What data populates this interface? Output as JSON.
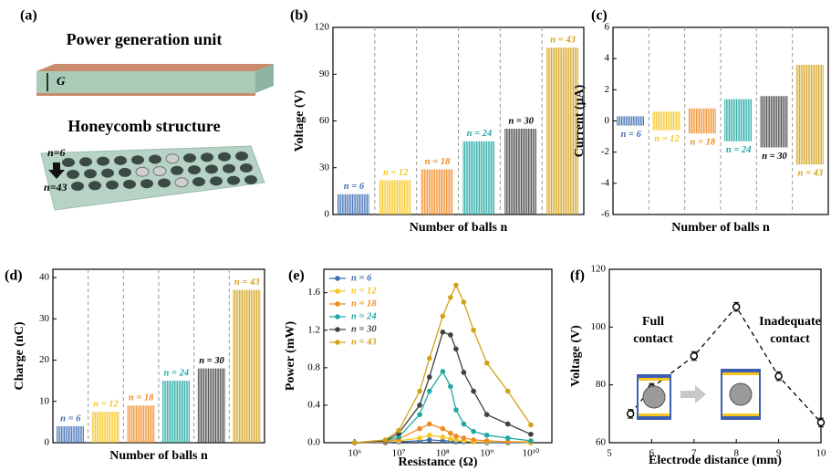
{
  "panel_a": {
    "label": "(a)",
    "title": "Power generation unit",
    "gap_label": "G",
    "subtitle": "Honeycomb structure",
    "top_label": "n=6",
    "bottom_label": "n=43"
  },
  "chart_data": [
    {
      "type": "spikes",
      "panel_label": "(b)",
      "y_label": "Voltage (V)",
      "x_label": "Number of balls n",
      "categories": [
        "n = 6",
        "n = 12",
        "n = 18",
        "n = 24",
        "n = 30",
        "n = 43"
      ],
      "values": [
        13,
        22,
        29,
        47,
        55,
        107
      ],
      "colors": [
        "#3b6db4",
        "#f6c520",
        "#f08a24",
        "#1fa8a2",
        "#404040",
        "#d4a219"
      ],
      "ylim": [
        0,
        120
      ],
      "yticks": [
        0,
        30,
        60,
        90,
        120
      ]
    },
    {
      "type": "signal",
      "panel_label": "(c)",
      "y_label": "Current (μA)",
      "x_label": "Number of balls n",
      "categories": [
        "n = 6",
        "n = 12",
        "n = 18",
        "n = 24",
        "n = 30",
        "n = 43"
      ],
      "values": [
        0.3,
        0.6,
        0.8,
        1.4,
        1.6,
        3.6
      ],
      "min_values": [
        -0.3,
        -0.6,
        -0.8,
        -1.3,
        -1.7,
        -2.8
      ],
      "colors": [
        "#3b6db4",
        "#f6c520",
        "#f08a24",
        "#1fa8a2",
        "#404040",
        "#d4a219"
      ],
      "ylim": [
        -6,
        6
      ],
      "yticks": [
        -6,
        -4,
        -2,
        0,
        2,
        4,
        6
      ]
    },
    {
      "type": "spikes",
      "panel_label": "(d)",
      "y_label": "Charge (nC)",
      "x_label": "Number of balls n",
      "categories": [
        "n = 6",
        "n = 12",
        "n = 18",
        "n = 24",
        "n = 30",
        "n = 43"
      ],
      "values": [
        4,
        7.5,
        9,
        15,
        18,
        37
      ],
      "colors": [
        "#3b6db4",
        "#f6c520",
        "#f08a24",
        "#1fa8a2",
        "#404040",
        "#d4a219"
      ],
      "ylim": [
        0,
        42
      ],
      "yticks": [
        0,
        10,
        20,
        30,
        40
      ]
    },
    {
      "type": "line",
      "panel_label": "(e)",
      "y_label": "Power (mW)",
      "x_label": "Resistance (Ω)",
      "x": [
        1000000,
        5000000,
        10000000,
        30000000,
        50000000,
        100000000,
        150000000,
        200000000,
        300000000,
        500000000,
        1000000000,
        3000000000,
        10000000000
      ],
      "log_x": true,
      "legend": "upper left",
      "series": [
        {
          "name": "n = 6",
          "color": "#3b6db4",
          "values": [
            0,
            0,
            0.01,
            0.02,
            0.03,
            0.02,
            0.02,
            0.01,
            0.01,
            0.01,
            0,
            0,
            0
          ]
        },
        {
          "name": "n = 12",
          "color": "#f6c520",
          "values": [
            0,
            0.01,
            0.02,
            0.05,
            0.08,
            0.06,
            0.04,
            0.03,
            0.02,
            0.01,
            0.01,
            0.01,
            0
          ]
        },
        {
          "name": "n = 18",
          "color": "#f08a24",
          "values": [
            0,
            0.01,
            0.04,
            0.15,
            0.2,
            0.15,
            0.1,
            0.07,
            0.05,
            0.03,
            0.02,
            0.01,
            0.01
          ]
        },
        {
          "name": "n = 24",
          "color": "#1fa8a2",
          "values": [
            0,
            0.02,
            0.06,
            0.3,
            0.55,
            0.76,
            0.6,
            0.35,
            0.2,
            0.12,
            0.08,
            0.05,
            0.02
          ]
        },
        {
          "name": "n = 30",
          "color": "#404040",
          "values": [
            0,
            0.02,
            0.1,
            0.4,
            0.7,
            1.18,
            1.15,
            1.0,
            0.75,
            0.55,
            0.3,
            0.2,
            0.09
          ]
        },
        {
          "name": "n = 43",
          "color": "#d4a219",
          "values": [
            0,
            0.03,
            0.13,
            0.55,
            0.9,
            1.35,
            1.55,
            1.68,
            1.5,
            1.2,
            0.85,
            0.55,
            0.19
          ]
        }
      ],
      "xlim": [
        200000,
        30000000000
      ],
      "xticks": [
        {
          "value": 1000000,
          "label": "10⁶"
        },
        {
          "value": 10000000,
          "label": "10⁷"
        },
        {
          "value": 100000000,
          "label": "10⁸"
        },
        {
          "value": 1000000000,
          "label": "10⁹"
        },
        {
          "value": 10000000000,
          "label": "10¹⁰"
        }
      ],
      "ylim": [
        0,
        1.85
      ],
      "yticks": [
        {
          "value": 0,
          "label": "0.0"
        },
        0.4,
        0.8,
        1.2,
        1.6
      ]
    },
    {
      "type": "errorbar",
      "panel_label": "(f)",
      "y_label": "Voltage (V)",
      "x_label": "Electrode distance (mm)",
      "x": [
        5.5,
        6,
        7,
        8,
        9,
        10
      ],
      "values": [
        70,
        79,
        90,
        107,
        83,
        67
      ],
      "errors": [
        1.5,
        1.5,
        1.5,
        1.5,
        1.5,
        1.5
      ],
      "color": "#000000",
      "xlim": [
        5,
        10
      ],
      "xticks": [
        5,
        6,
        7,
        8,
        9,
        10
      ],
      "ylim": [
        60,
        120
      ],
      "yticks": [
        60,
        80,
        100,
        120
      ],
      "annotations": [
        "Full",
        "contact",
        "Inadequate",
        "contact"
      ]
    }
  ]
}
